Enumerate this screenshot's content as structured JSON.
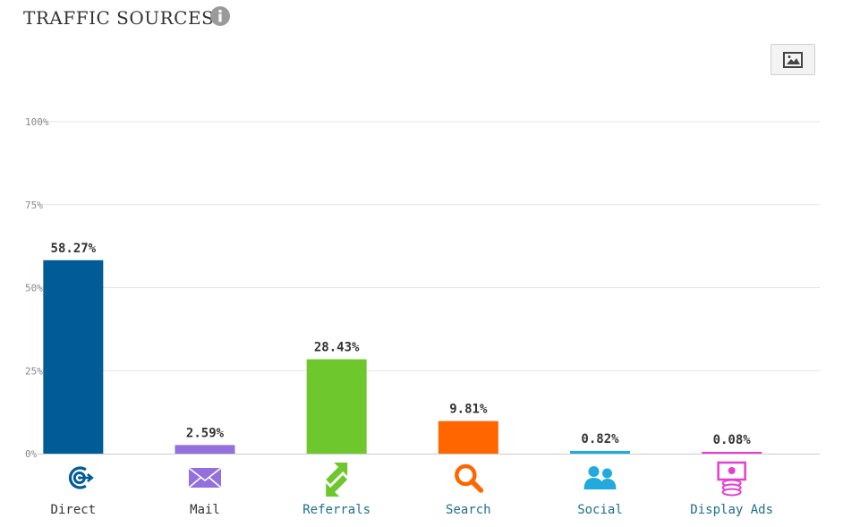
{
  "title": "TRAFFIC SOURCES",
  "icons": {
    "info": "info-icon",
    "export": "image-icon"
  },
  "chart_data": {
    "type": "bar",
    "title": "TRAFFIC SOURCES",
    "categories": [
      "Direct",
      "Mail",
      "Referrals",
      "Search",
      "Social",
      "Display Ads"
    ],
    "values": [
      58.27,
      2.59,
      28.43,
      9.81,
      0.82,
      0.08
    ],
    "value_labels": [
      "58.27%",
      "2.59%",
      "28.43%",
      "9.81%",
      "0.82%",
      "0.08%"
    ],
    "colors": [
      "#005b96",
      "#9370db",
      "#6fc72e",
      "#ff6600",
      "#22aadd",
      "#e53fd0"
    ],
    "label_colors": [
      "#333333",
      "#333333",
      "#1f6f8b",
      "#1f6f8b",
      "#1f6f8b",
      "#1f6f8b"
    ],
    "icons": [
      "target-icon",
      "mail-icon",
      "refresh-arrows-icon",
      "search-icon",
      "people-icon",
      "money-icon"
    ],
    "yticks": [
      "0%",
      "25%",
      "50%",
      "75%",
      "100%"
    ],
    "ylim": [
      0,
      100
    ],
    "grid": true
  }
}
